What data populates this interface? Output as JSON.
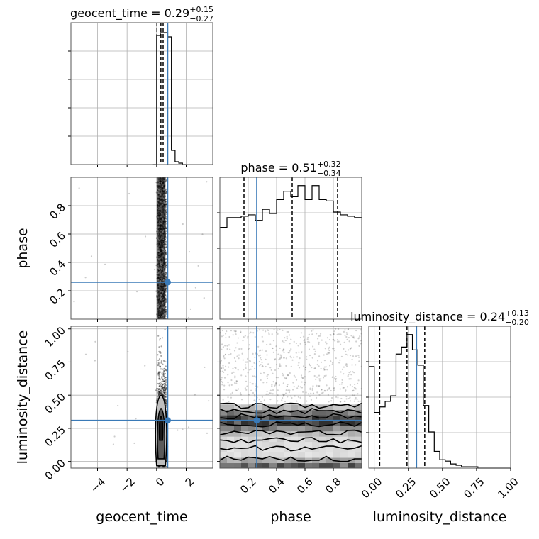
{
  "chart_data": {
    "type": "corner",
    "parameters": [
      "geocent_time",
      "phase",
      "luminosity_distance"
    ],
    "truth": {
      "geocent_time": 0.75,
      "phase": 0.26,
      "luminosity_distance": 0.31
    },
    "colors": {
      "truth": "#3a7ab7",
      "hist": "#000000",
      "grid": "#b0b0b0",
      "points": "#555555"
    },
    "grid": true,
    "diagonal": [
      {
        "param": "geocent_time",
        "title": {
          "text": "geocent_time = 0.29",
          "plus": "+0.15",
          "minus": "−0.27"
        },
        "xlim": [
          -5.8,
          3.8
        ],
        "xticks": [
          -4,
          -2,
          0,
          2
        ],
        "xticklabels": [
          "−4",
          "−2",
          "0",
          "2"
        ],
        "quantiles": [
          0.02,
          0.29,
          0.44
        ],
        "hist_x": [
          -0.25,
          0.0,
          0.25,
          0.5,
          0.75,
          1.0,
          1.25,
          1.5,
          1.75,
          2.0
        ],
        "hist_y": [
          0.0,
          0.91,
          0.93,
          0.93,
          0.9,
          0.1,
          0.02,
          0.01,
          0.0
        ],
        "ylim": [
          0,
          1
        ]
      },
      {
        "param": "phase",
        "title": {
          "text": "phase = 0.51",
          "plus": "+0.32",
          "minus": "−0.34"
        },
        "xlim": [
          0.0,
          1.0
        ],
        "xticks": [
          0.2,
          0.4,
          0.6,
          0.8
        ],
        "xticklabels": [
          "0.2",
          "0.4",
          "0.6",
          "0.8"
        ],
        "quantiles": [
          0.17,
          0.51,
          0.83
        ],
        "hist_x": [
          0.0,
          0.05,
          0.1,
          0.15,
          0.2,
          0.25,
          0.3,
          0.35,
          0.4,
          0.45,
          0.5,
          0.55,
          0.6,
          0.65,
          0.7,
          0.75,
          0.8,
          0.85,
          0.9,
          0.95,
          1.0
        ],
        "hist_y": [
          0.66,
          0.73,
          0.73,
          0.74,
          0.75,
          0.71,
          0.79,
          0.76,
          0.86,
          0.92,
          0.88,
          0.96,
          0.86,
          0.96,
          0.86,
          0.85,
          0.77,
          0.75,
          0.74,
          0.73
        ],
        "ylim": [
          0,
          1.02
        ]
      },
      {
        "param": "luminosity_distance",
        "title": {
          "text": "luminosity_distance = 0.24",
          "plus": "+0.13",
          "minus": "−0.20"
        },
        "xlim": [
          -0.04,
          1.0
        ],
        "xticks": [
          0.0,
          0.25,
          0.5,
          0.75,
          1.0
        ],
        "xticklabels": [
          "0.00",
          "0.25",
          "0.50",
          "0.75",
          "1.00"
        ],
        "quantiles": [
          0.04,
          0.24,
          0.37
        ],
        "hist_x": [
          -0.04,
          0.0,
          0.04,
          0.08,
          0.12,
          0.16,
          0.2,
          0.24,
          0.28,
          0.32,
          0.36,
          0.4,
          0.44,
          0.48,
          0.52,
          0.56,
          0.6,
          0.64,
          0.68,
          0.72,
          0.76,
          0.8,
          0.84,
          0.88,
          0.92,
          0.96,
          1.0
        ],
        "hist_y": [
          0.73,
          0.4,
          0.44,
          0.48,
          0.52,
          0.82,
          0.87,
          0.96,
          0.85,
          0.74,
          0.45,
          0.26,
          0.12,
          0.06,
          0.05,
          0.03,
          0.02,
          0.01,
          0.01,
          0.01,
          0.0,
          0.0,
          0.0,
          0.0,
          0.0,
          0.0
        ],
        "ylim": [
          0,
          1.02
        ]
      }
    ],
    "offdiag": [
      {
        "x": "geocent_time",
        "y": "phase",
        "row": 1,
        "col": 0
      },
      {
        "x": "geocent_time",
        "y": "luminosity_distance",
        "row": 2,
        "col": 0
      },
      {
        "x": "phase",
        "y": "luminosity_distance",
        "row": 2,
        "col": 1
      }
    ],
    "yaxis": [
      {
        "param": "phase",
        "label": "phase",
        "ylim": [
          0.0,
          1.0
        ],
        "yticks": [
          0.2,
          0.4,
          0.6,
          0.8
        ],
        "yticklabels": [
          "0.2",
          "0.4",
          "0.6",
          "0.8"
        ]
      },
      {
        "param": "luminosity_distance",
        "label": "luminosity_distance",
        "ylim": [
          -0.05,
          1.02
        ],
        "yticks": [
          0.0,
          0.25,
          0.5,
          0.75,
          1.0
        ],
        "yticklabels": [
          "0.00",
          "0.25",
          "0.50",
          "0.75",
          "1.00"
        ]
      }
    ],
    "xlabels": [
      "geocent_time",
      "phase",
      "luminosity_distance"
    ]
  }
}
